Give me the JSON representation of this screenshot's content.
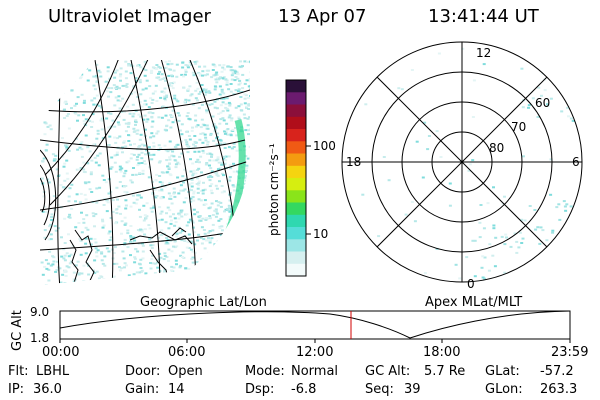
{
  "header": {
    "instrument": "Ultraviolet Imager",
    "date": "13 Apr 07",
    "time": "13:41:44 UT"
  },
  "colorbar": {
    "label": "photon cm⁻²s⁻¹",
    "ticks": [
      "100",
      "10"
    ],
    "colors": [
      "#2a1038",
      "#6b1b6f",
      "#8b0f3a",
      "#b00e1a",
      "#d8231c",
      "#f05a14",
      "#f49b10",
      "#f5d410",
      "#d6ee10",
      "#8ae41a",
      "#34d860",
      "#2fd8b0",
      "#55ddd8",
      "#9ce6e6",
      "#d6f0f0",
      "#f3fbfb"
    ]
  },
  "polar_plot": {
    "mlt_labels": {
      "top": "12",
      "bottom": "0",
      "left": "18",
      "right": "6"
    },
    "lat_labels": [
      "60",
      "70",
      "80"
    ]
  },
  "map_labels": {
    "left": "Geographic Lat/Lon",
    "right": "Apex MLat/MLT"
  },
  "altitude_plot": {
    "ylabel": "GC Alt",
    "y_ticks": [
      "9.0",
      "1.8"
    ],
    "x_ticks": [
      "00:00",
      "06:00",
      "12:00",
      "18:00",
      "23:59"
    ],
    "current_time_marker": "13:41:44"
  },
  "footer": {
    "flt_label": "Flt:",
    "flt_value": "LBHL",
    "door_label": "Door:",
    "door_value": "Open",
    "mode_label": "Mode:",
    "mode_value": "Normal",
    "gcalt_label": "GC Alt:",
    "gcalt_value": "5.7 Re",
    "glat_label": "GLat:",
    "glat_value": "-57.2",
    "ip_label": "IP:",
    "ip_value": "36.0",
    "gain_label": "Gain:",
    "gain_value": "14",
    "dsp_label": "Dsp:",
    "dsp_value": "-6.8",
    "seq_label": "Seq:",
    "seq_value": "39",
    "glon_label": "GLon:",
    "glon_value": "263.3"
  }
}
